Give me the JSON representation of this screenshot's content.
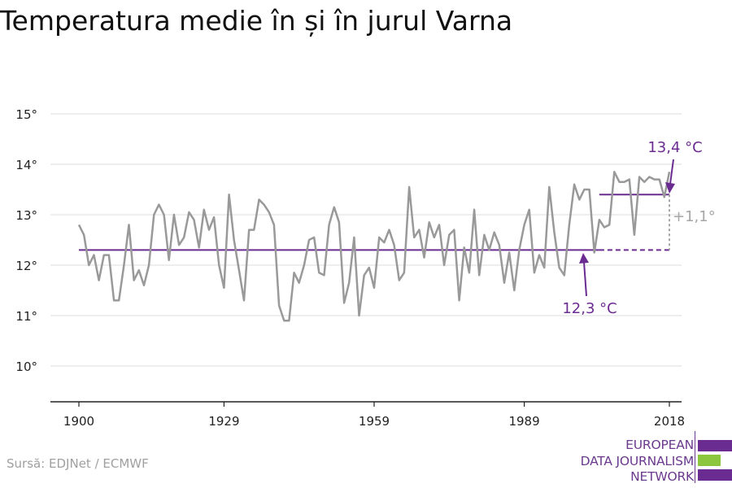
{
  "title": "Temperatura medie în și în jurul Varna",
  "source": "Sursă: EDJNet / ECMWF",
  "logo": {
    "lines": [
      "EUROPEAN",
      "DATA JOURNALISM",
      "NETWORK"
    ],
    "colors": {
      "purple": "#6b2c91",
      "green": "#8cc63f"
    }
  },
  "chart_data": {
    "type": "line",
    "title": "Temperatura medie în și în jurul Varna",
    "xlabel": "",
    "ylabel": "",
    "xlim": [
      1900,
      2018
    ],
    "ylim": [
      9.3,
      15.4
    ],
    "x_ticks": [
      1900,
      1929,
      1959,
      1989,
      2018
    ],
    "y_ticks": [
      10,
      11,
      12,
      13,
      14,
      15
    ],
    "y_tick_labels": [
      "10°",
      "11°",
      "12°",
      "13°",
      "14°",
      "15°"
    ],
    "grid": true,
    "colors": {
      "series": "#999999",
      "average": "#6b2c91",
      "difference": "#a6a6a6"
    },
    "series": [
      {
        "x": [
          1900,
          1901,
          1902,
          1903,
          1904,
          1905,
          1906,
          1907,
          1908,
          1909,
          1910,
          1911,
          1912,
          1913,
          1914,
          1915,
          1916,
          1917,
          1918,
          1919,
          1920,
          1921,
          1922,
          1923,
          1924,
          1925,
          1926,
          1927,
          1928,
          1929,
          1930,
          1931,
          1932,
          1933,
          1934,
          1935,
          1936,
          1937,
          1938,
          1939,
          1940,
          1941,
          1942,
          1943,
          1944,
          1945,
          1946,
          1947,
          1948,
          1949,
          1950,
          1951,
          1952,
          1953,
          1954,
          1955,
          1956,
          1957,
          1958,
          1959,
          1960,
          1961,
          1962,
          1963,
          1964,
          1965,
          1966,
          1967,
          1968,
          1969,
          1970,
          1971,
          1972,
          1973,
          1974,
          1975,
          1976,
          1977,
          1978,
          1979,
          1980,
          1981,
          1982,
          1983,
          1984,
          1985,
          1986,
          1987,
          1988,
          1989,
          1990,
          1991,
          1992,
          1993,
          1994,
          1995,
          1996,
          1997,
          1998,
          1999,
          2000,
          2001,
          2002,
          2003,
          2004,
          2005,
          2006,
          2007,
          2008,
          2009,
          2010,
          2011,
          2012,
          2013,
          2014,
          2015,
          2016,
          2017,
          2018
        ],
        "values": [
          12.8,
          12.6,
          12.0,
          12.2,
          11.7,
          12.2,
          12.2,
          11.3,
          11.3,
          12.0,
          12.8,
          11.7,
          11.9,
          11.6,
          12.0,
          13.0,
          13.2,
          13.0,
          12.1,
          13.0,
          12.4,
          12.55,
          13.05,
          12.9,
          12.35,
          13.1,
          12.7,
          12.95,
          12.0,
          11.55,
          13.4,
          12.5,
          11.9,
          11.3,
          12.7,
          12.7,
          13.3,
          13.2,
          13.05,
          12.8,
          11.2,
          10.9,
          10.9,
          11.85,
          11.65,
          12.0,
          12.5,
          12.55,
          11.85,
          11.8,
          12.8,
          13.15,
          12.85,
          11.25,
          11.65,
          12.55,
          11.0,
          11.8,
          11.95,
          11.55,
          12.55,
          12.45,
          12.7,
          12.4,
          11.7,
          11.85,
          13.55,
          12.55,
          12.7,
          12.15,
          12.85,
          12.55,
          12.8,
          12.0,
          12.6,
          12.7,
          11.3,
          12.35,
          11.85,
          13.1,
          11.8,
          12.6,
          12.3,
          12.65,
          12.4,
          11.65,
          12.25,
          11.5,
          12.3,
          12.8,
          13.1,
          11.85,
          12.2,
          11.95,
          13.55,
          12.65,
          11.95,
          11.8,
          12.8,
          13.6,
          13.3,
          13.5,
          13.5,
          12.25,
          12.9,
          12.75,
          12.8,
          13.85,
          13.65,
          13.65,
          13.7,
          12.6,
          13.75,
          13.65,
          13.75,
          13.7,
          13.7,
          13.35,
          13.85
        ]
      }
    ],
    "reference_lines": [
      {
        "label": "12,3 °C",
        "value": 12.3,
        "x_range": [
          1900,
          2018
        ],
        "solid_until": 2004
      },
      {
        "label": "13,4 °C",
        "value": 13.4,
        "x_range": [
          2004,
          2018
        ]
      }
    ],
    "annotations": {
      "recent_avg_label": "13,4 °C",
      "baseline_label": "12,3 °C",
      "difference_label": "+1,1°"
    }
  }
}
